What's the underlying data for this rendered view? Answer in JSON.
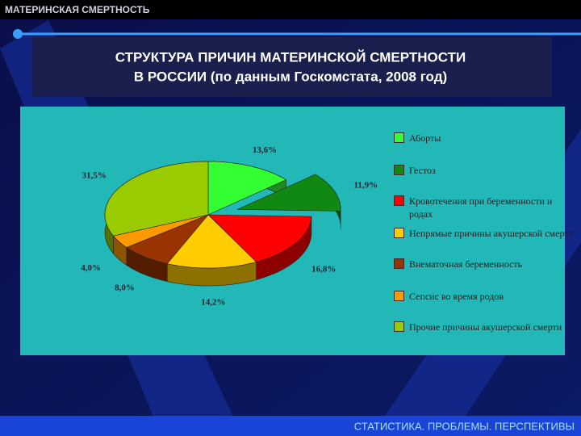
{
  "header": {
    "title": "МАТЕРИНСКАЯ СМЕРТНОСТЬ"
  },
  "footer": {
    "text": "СТАТИСТИКА. ПРОБЛЕМЫ. ПЕРСПЕКТИВЫ"
  },
  "chart_data": {
    "type": "pie",
    "title": [
      "СТРУКТУРА ПРИЧИН МАТЕРИНСКОЙ СМЕРТНОСТИ",
      "В РОССИИ (по данным Госкомстата, 2008 год)"
    ],
    "categories": [
      "Аборты",
      "Гестоз",
      "Кровотечения при беременности и родах",
      "Непрямые причины акушерской смерти",
      "Внематочная беременность",
      "Сепсис во время родов",
      "Прочие причины акушерской смерти"
    ],
    "values": [
      13.6,
      11.9,
      16.8,
      14.2,
      8.0,
      4.0,
      31.5
    ],
    "value_labels": [
      "13,6%",
      "11,9%",
      "16,8%",
      "14,2%",
      "8,0%",
      "4,0%",
      "31,5%"
    ],
    "colors": [
      "#33ff33",
      "#118811",
      "#ff0000",
      "#ffcc00",
      "#993300",
      "#ff9900",
      "#99cc00"
    ],
    "exploded": [
      false,
      true,
      false,
      false,
      false,
      false,
      false
    ],
    "legend": "right"
  }
}
